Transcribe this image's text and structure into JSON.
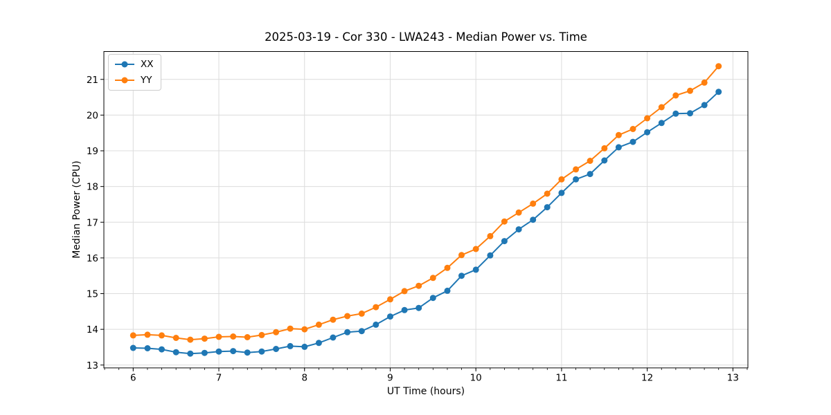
{
  "chart_data": {
    "type": "line",
    "title": "2025-03-19 - Cor 330 - LWA243 - Median Power vs. Time",
    "xlabel": "UT Time (hours)",
    "ylabel": "Median Power (CPU)",
    "xlim": [
      5.658,
      13.175
    ],
    "ylim": [
      12.92,
      21.78
    ],
    "x_ticks": [
      6,
      7,
      8,
      9,
      10,
      11,
      12,
      13
    ],
    "y_ticks": [
      13,
      14,
      15,
      16,
      17,
      18,
      19,
      20,
      21
    ],
    "x_minor_tick_step": 0.166667,
    "grid": true,
    "legend_position": "upper-left",
    "colors": {
      "grid": "#dcdcdc",
      "spine": "#000000",
      "background": "#ffffff"
    },
    "x": [
      6.0,
      6.167,
      6.333,
      6.5,
      6.667,
      6.833,
      7.0,
      7.167,
      7.333,
      7.5,
      7.667,
      7.833,
      8.0,
      8.167,
      8.333,
      8.5,
      8.667,
      8.833,
      9.0,
      9.167,
      9.333,
      9.5,
      9.667,
      9.833,
      10.0,
      10.167,
      10.333,
      10.5,
      10.667,
      10.833,
      11.0,
      11.167,
      11.333,
      11.5,
      11.667,
      11.833,
      12.0,
      12.167,
      12.333,
      12.5,
      12.667,
      12.833
    ],
    "series": [
      {
        "name": "XX",
        "color": "#1f77b4",
        "values": [
          13.48,
          13.47,
          13.44,
          13.36,
          13.32,
          13.34,
          13.38,
          13.39,
          13.35,
          13.38,
          13.45,
          13.53,
          13.51,
          13.62,
          13.77,
          13.92,
          13.95,
          14.13,
          14.36,
          14.54,
          14.6,
          14.88,
          15.08,
          15.5,
          15.67,
          16.07,
          16.47,
          16.8,
          17.07,
          17.42,
          17.82,
          18.2,
          18.35,
          18.73,
          19.1,
          19.25,
          19.52,
          19.78,
          20.04,
          20.05,
          20.28,
          20.65
        ]
      },
      {
        "name": "YY",
        "color": "#ff7f0e",
        "values": [
          13.83,
          13.85,
          13.83,
          13.76,
          13.71,
          13.74,
          13.79,
          13.8,
          13.78,
          13.84,
          13.92,
          14.02,
          14.0,
          14.13,
          14.27,
          14.37,
          14.44,
          14.62,
          14.84,
          15.07,
          15.22,
          15.44,
          15.72,
          16.08,
          16.25,
          16.61,
          17.02,
          17.27,
          17.52,
          17.8,
          18.2,
          18.48,
          18.72,
          19.07,
          19.44,
          19.61,
          19.91,
          20.22,
          20.55,
          20.68,
          20.91,
          21.37
        ]
      }
    ]
  }
}
